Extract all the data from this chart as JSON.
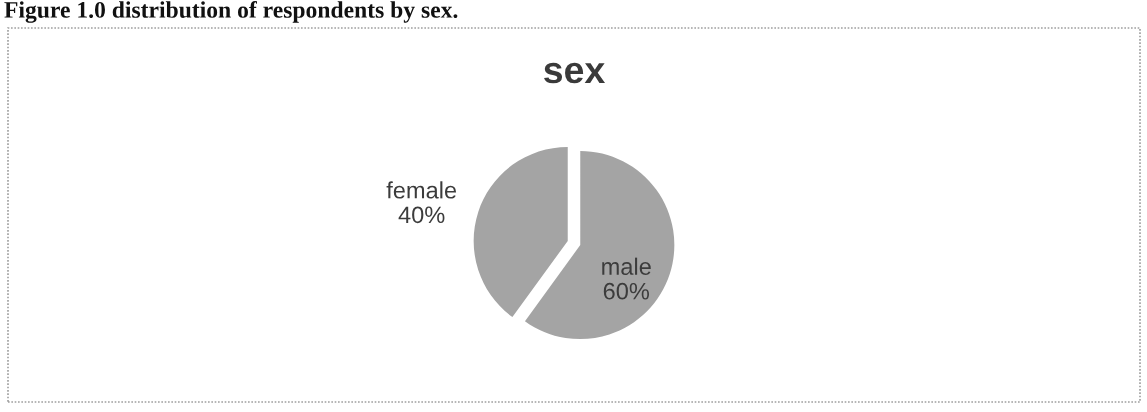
{
  "chart_data": {
    "type": "pie",
    "title": "sex",
    "categories": [
      "male",
      "female"
    ],
    "values": [
      60,
      40
    ],
    "colors": [
      "#a4a4a4",
      "#a4a4a4"
    ],
    "value_labels": [
      "60%",
      "40%"
    ],
    "annotations": [
      "Figure 1.0 distribution of respondents by sex."
    ]
  }
}
